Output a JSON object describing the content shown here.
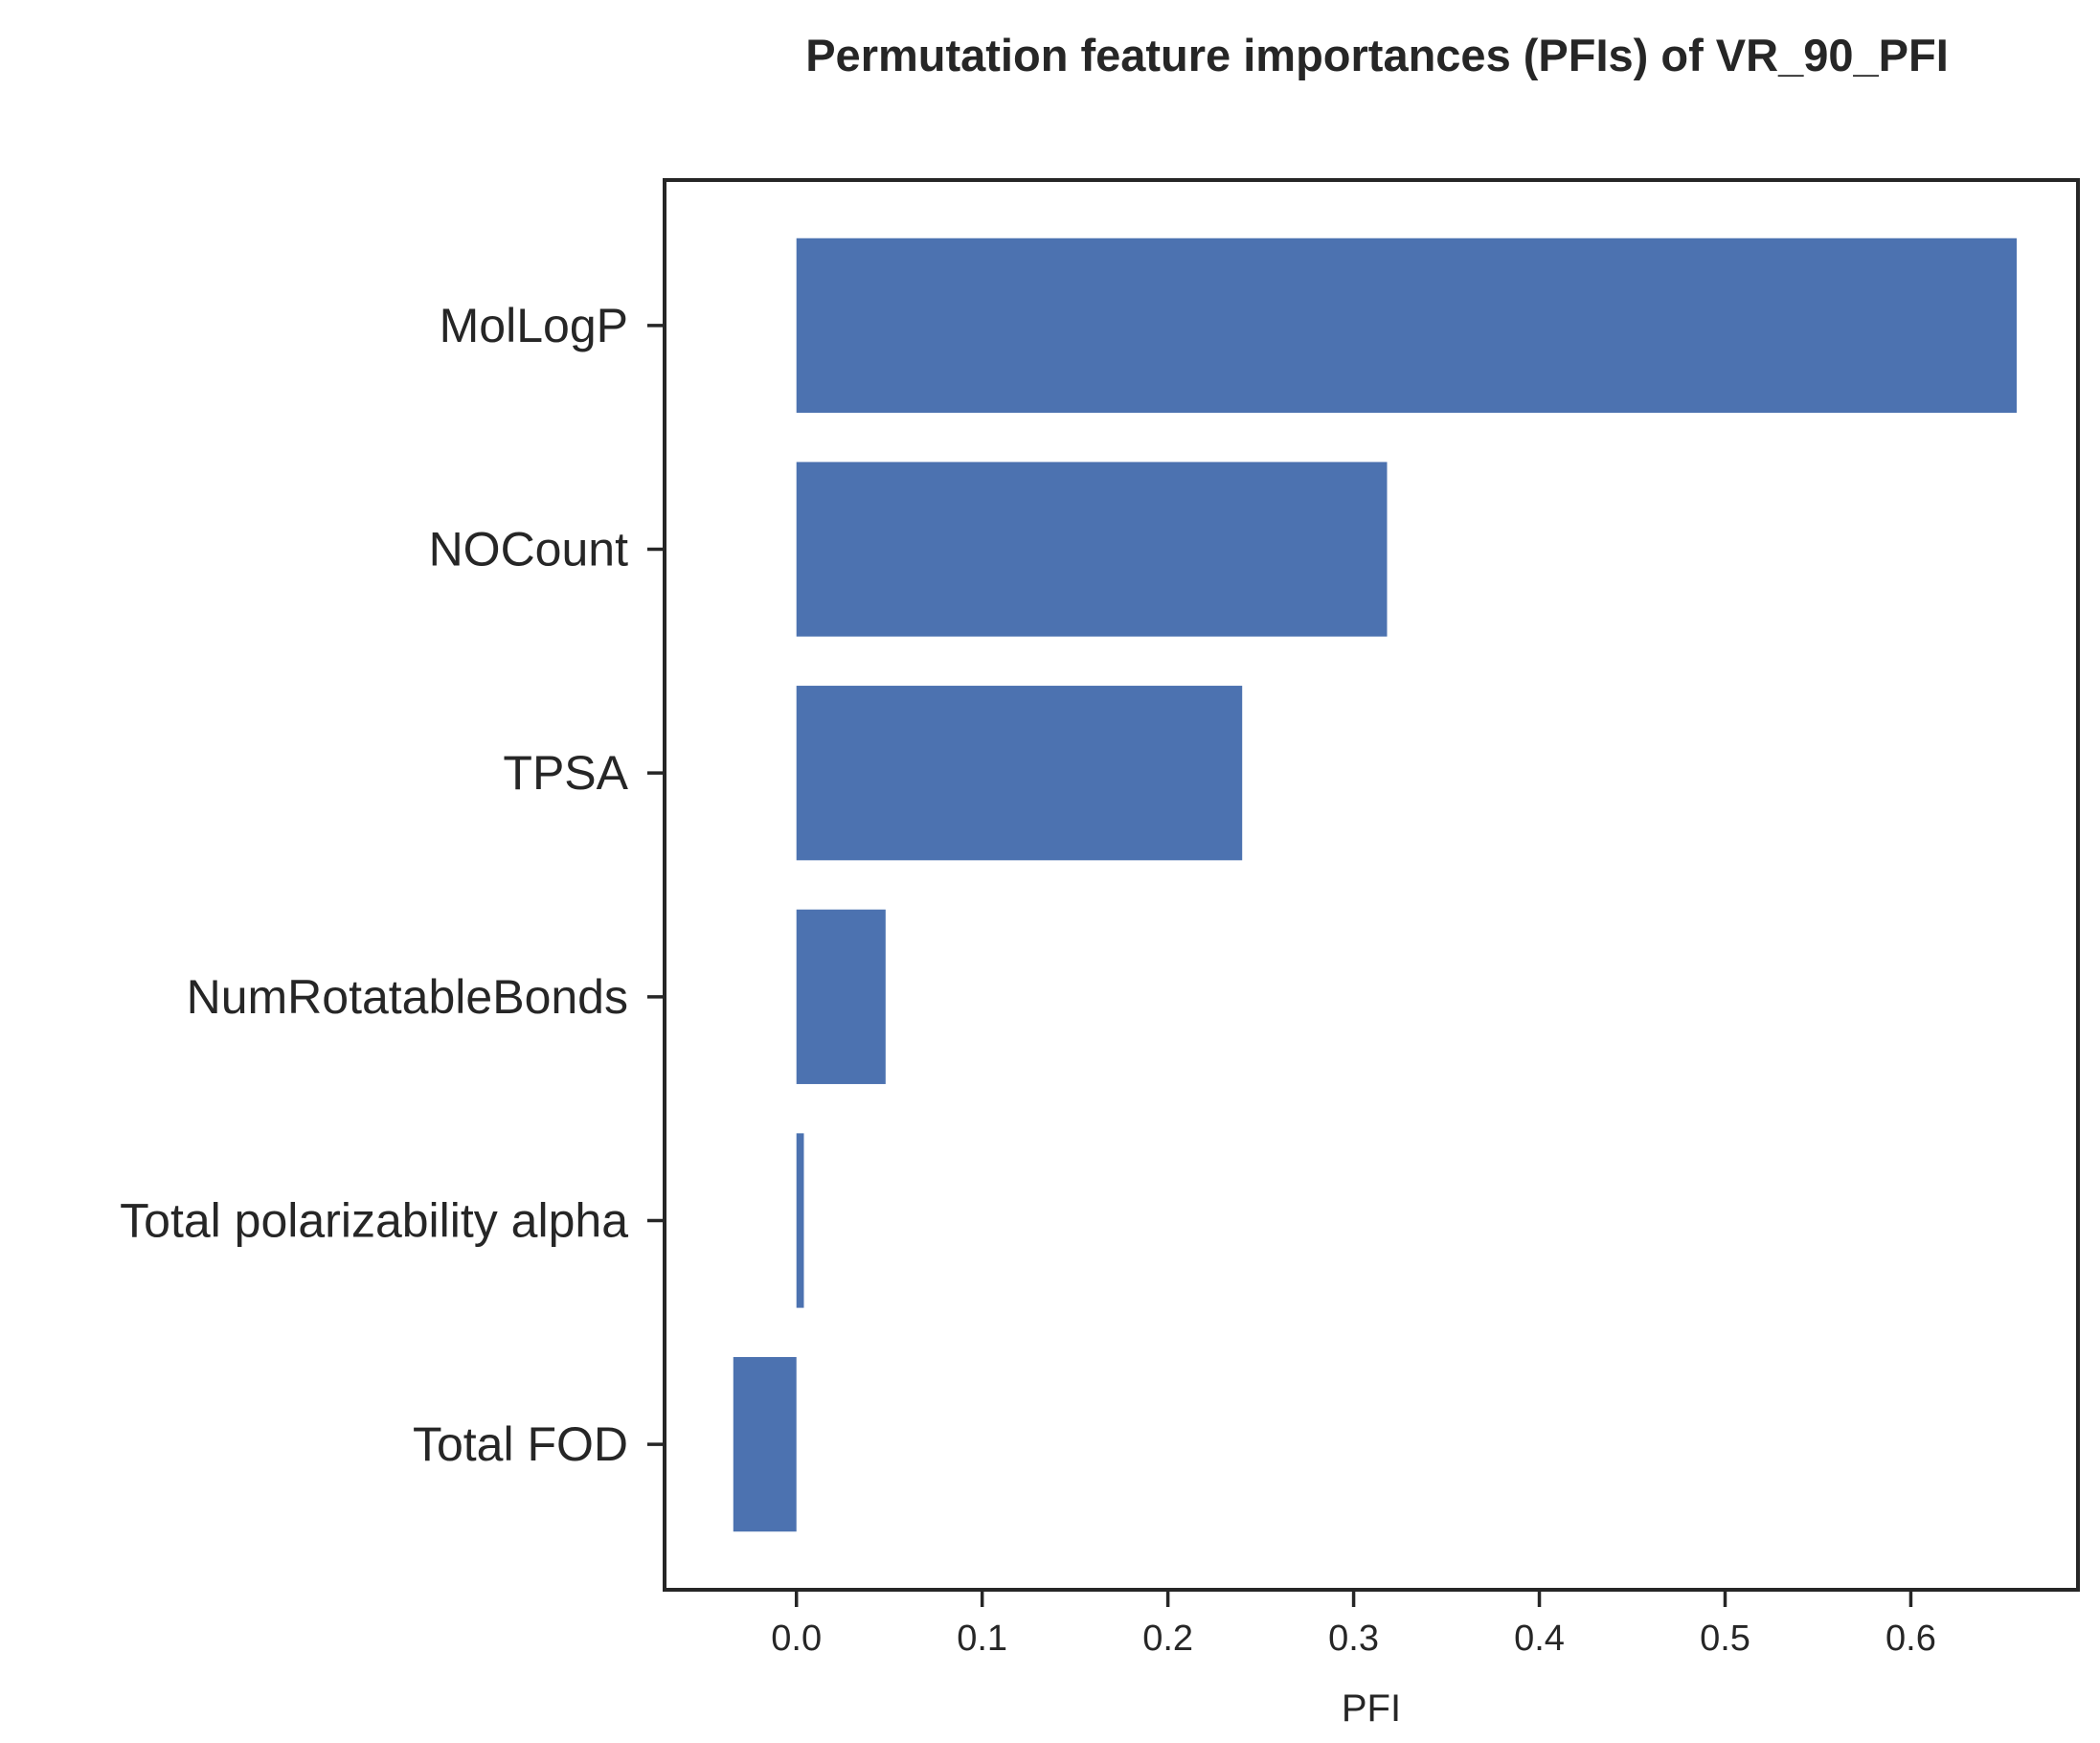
{
  "chart_data": {
    "type": "bar",
    "orientation": "horizontal",
    "title": "Permutation feature importances (PFIs) of VR_90_PFI",
    "xlabel": "PFI",
    "ylabel": "",
    "categories": [
      "MolLogP",
      "NOCount",
      "TPSA",
      "NumRotatableBonds",
      "Total polarizability alpha",
      "Total FOD"
    ],
    "values": [
      0.657,
      0.318,
      0.24,
      0.048,
      0.004,
      -0.034
    ],
    "xlim": [
      -0.071,
      0.69
    ],
    "xticks": [
      0.0,
      0.1,
      0.2,
      0.3,
      0.4,
      0.5,
      0.6
    ],
    "xtick_labels": [
      "0.0",
      "0.1",
      "0.2",
      "0.3",
      "0.4",
      "0.5",
      "0.6"
    ],
    "grid": false,
    "bar_color": "#4c72b0"
  }
}
